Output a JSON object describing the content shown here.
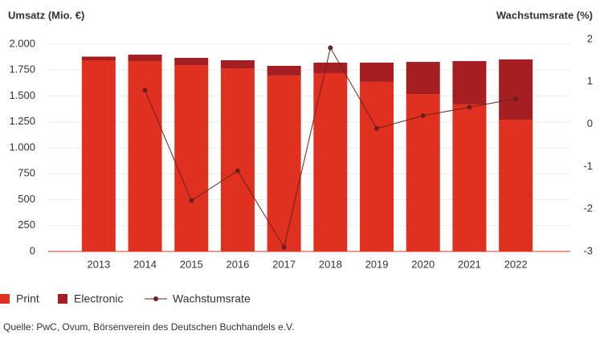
{
  "chart_data": {
    "type": "bar-line",
    "y_label": "Umsatz (Mio. €)",
    "y2_label": "Wachstumsrate (%)",
    "categories": [
      "2013",
      "2014",
      "2015",
      "2016",
      "2017",
      "2018",
      "2019",
      "2020",
      "2021",
      "2022"
    ],
    "series": [
      {
        "name": "Print",
        "color": "#e03020",
        "type": "bar",
        "values": [
          1845,
          1837,
          1798,
          1767,
          1698,
          1721,
          1636,
          1519,
          1419,
          1271
        ]
      },
      {
        "name": "Electronic",
        "color": "#a51e22",
        "type": "bar",
        "values": [
          35,
          62,
          70,
          78,
          93,
          101,
          186,
          310,
          418,
          582
        ]
      },
      {
        "name": "Wachstumsrate",
        "color": "#6b2020",
        "type": "line",
        "axis": "y2",
        "values": [
          null,
          0.8,
          -1.8,
          -1.1,
          -2.9,
          1.8,
          -0.1,
          0.2,
          0.4,
          0.6
        ]
      }
    ],
    "ylim": [
      0,
      2000
    ],
    "yticks": [
      0,
      250,
      500,
      {
        "value": 750,
        "label": "750"
      },
      {
        "value": 1000,
        "label": "1.000"
      },
      {
        "value": 1250,
        "label": "1.250"
      },
      {
        "value": 1500,
        "label": "1.500"
      },
      {
        "value": 1750,
        "label": "1.750"
      },
      {
        "value": 2000,
        "label": "2.000"
      }
    ],
    "y2lim": [
      -3,
      2
    ],
    "y2ticks": [
      -3,
      -2,
      -1,
      0,
      1,
      2
    ],
    "grid": true,
    "legend": "bottom",
    "source": "Quelle: PwC, Ovum, Börsenverein des Deutschen Buchhandels e.V."
  }
}
